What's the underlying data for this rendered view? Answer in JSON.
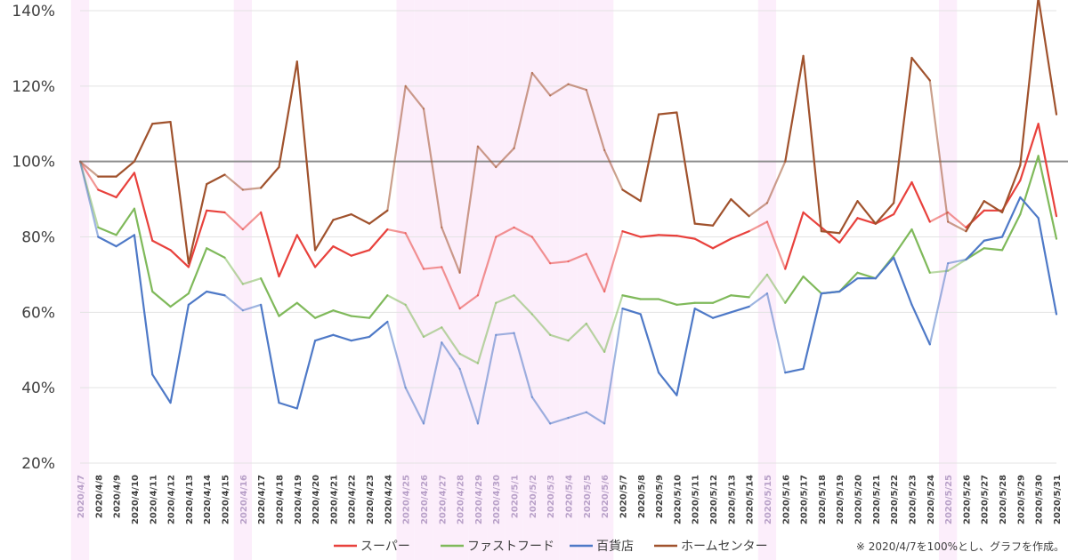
{
  "chart_data": {
    "type": "line",
    "title": "",
    "xlabel": "",
    "ylabel": "",
    "ylim": [
      20,
      140
    ],
    "yticks": [
      20,
      40,
      60,
      80,
      100,
      120,
      140
    ],
    "ytick_suffix": "%",
    "reference_line": 100,
    "legend_position": "bottom",
    "note": "※ 2020/4/7を100%とし、グラフを作成。",
    "categories": [
      "2020/4/7",
      "2020/4/8",
      "2020/4/9",
      "2020/4/10",
      "2020/4/11",
      "2020/4/12",
      "2020/4/13",
      "2020/4/14",
      "2020/4/15",
      "2020/4/16",
      "2020/4/17",
      "2020/4/18",
      "2020/4/19",
      "2020/4/20",
      "2020/4/21",
      "2020/4/22",
      "2020/4/23",
      "2020/4/24",
      "2020/4/25",
      "2020/4/26",
      "2020/4/27",
      "2020/4/28",
      "2020/4/29",
      "2020/4/30",
      "2020/5/1",
      "2020/5/2",
      "2020/5/3",
      "2020/5/4",
      "2020/5/5",
      "2020/5/6",
      "2020/5/7",
      "2020/5/8",
      "2020/5/9",
      "2020/5/10",
      "2020/5/11",
      "2020/5/12",
      "2020/5/13",
      "2020/5/14",
      "2020/5/15",
      "2020/5/16",
      "2020/5/17",
      "2020/5/18",
      "2020/5/19",
      "2020/5/20",
      "2020/5/21",
      "2020/5/22",
      "2020/5/23",
      "2020/5/24",
      "2020/5/25",
      "2020/5/26",
      "2020/5/27",
      "2020/5/28",
      "2020/5/29",
      "2020/5/30",
      "2020/5/31"
    ],
    "highlight_categories": [
      "2020/4/7",
      "2020/4/16",
      "2020/4/25",
      "2020/4/26",
      "2020/4/27",
      "2020/4/28",
      "2020/4/29",
      "2020/4/30",
      "2020/5/1",
      "2020/5/2",
      "2020/5/3",
      "2020/5/4",
      "2020/5/5",
      "2020/5/6",
      "2020/5/15",
      "2020/5/25"
    ],
    "series": [
      {
        "name": "スーパー",
        "color": "#e8413c",
        "values": [
          100,
          92.5,
          90.5,
          97,
          79,
          76.5,
          72,
          87,
          86.5,
          82,
          86.5,
          69.5,
          80.5,
          72,
          77.5,
          75,
          76.5,
          82,
          81,
          71.5,
          72,
          61,
          64.5,
          80,
          82.5,
          80,
          73,
          73.5,
          75.5,
          65.5,
          81.5,
          80,
          80.5,
          80.3,
          79.5,
          77,
          79.5,
          81.5,
          84,
          71.5,
          86.5,
          82.5,
          78.5,
          85,
          83.5,
          86,
          94.5,
          84,
          86.5,
          82.5,
          87,
          87,
          95,
          110,
          85.5
        ]
      },
      {
        "name": "ファストフード",
        "color": "#7fb95a",
        "values": [
          100,
          82.5,
          80.5,
          87.5,
          65.5,
          61.5,
          65,
          77,
          74.5,
          67.5,
          69,
          59,
          62.5,
          58.5,
          60.5,
          59,
          58.5,
          64.5,
          62,
          53.5,
          56,
          49,
          46.5,
          62.5,
          64.5,
          59.5,
          54,
          52.5,
          57,
          49.5,
          64.5,
          63.5,
          63.5,
          62,
          62.5,
          62.5,
          64.5,
          64,
          70,
          62.5,
          69.5,
          65,
          65.5,
          70.5,
          69,
          75,
          82,
          70.5,
          71,
          74,
          77,
          76.5,
          86,
          101.5,
          79.5
        ]
      },
      {
        "name": "百貨店",
        "color": "#4e79c7",
        "values": [
          100,
          80,
          77.5,
          80.5,
          43.5,
          36,
          62,
          65.5,
          64.5,
          60.5,
          62,
          36,
          34.5,
          52.5,
          54,
          52.5,
          53.5,
          57.5,
          40,
          30.5,
          52,
          45,
          30.5,
          54,
          54.5,
          37.5,
          30.5,
          32,
          33.5,
          30.5,
          61,
          59.5,
          44,
          38,
          61,
          58.5,
          60,
          61.5,
          65,
          44,
          45,
          65,
          65.5,
          69,
          69,
          74.5,
          62,
          51.5,
          73,
          74,
          79,
          80,
          90.5,
          85,
          59.5
        ]
      },
      {
        "name": "ホームセンター",
        "color": "#a0522d",
        "values": [
          100,
          96,
          96,
          100,
          110,
          110.5,
          73,
          94,
          96.5,
          92.5,
          93,
          98.5,
          126.5,
          76.5,
          84.5,
          86,
          83.5,
          87,
          120,
          114,
          82.5,
          70.5,
          104,
          98.5,
          103.5,
          123.5,
          117.5,
          120.5,
          119,
          103,
          92.5,
          89.5,
          112.5,
          113,
          83.5,
          83,
          90,
          85.5,
          89,
          100,
          128,
          81.5,
          81,
          89.5,
          83.5,
          89,
          127.5,
          121.5,
          84,
          81.5,
          89.5,
          86.5,
          99,
          143.5,
          112.5
        ]
      }
    ]
  }
}
